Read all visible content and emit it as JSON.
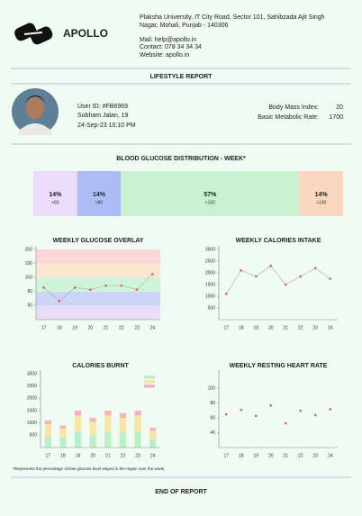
{
  "header": {
    "brand": "APOLLO",
    "address": [
      "Plaksha University, IT City Road, Sector 101, Sahibzada Ajit Singh",
      "Nagar, Mohali, Punjab - 140306"
    ],
    "mail": "Mail: help@apollo.in",
    "contact": "Contact: 078 34 34 34",
    "website": "Website: apollo.in"
  },
  "report_title": "LIFESTYLE REPORT",
  "profile": {
    "user_id": "User ID: #FB6969",
    "name": "Subham Jalan, 19",
    "datetime": "24-Sep-23 10:10 PM",
    "metrics": [
      {
        "label": "Body Mass Index:",
        "value": "20"
      },
      {
        "label": "Basic Metabolic Rate:",
        "value": "1700"
      }
    ]
  },
  "distribution": {
    "title": "BLOOD GLUCOSE DISTRIBUTION - WEEK*",
    "segments": [
      {
        "value": 14,
        "value_label": "14%",
        "range": "<60",
        "color": "#ecdcfb"
      },
      {
        "value": 14,
        "value_label": "14%",
        "range": "<80",
        "color": "#aebcf5"
      },
      {
        "value": 57,
        "value_label": "57%",
        "range": "<150",
        "color": "#c9f2d3"
      },
      {
        "value": 14,
        "value_label": "14%",
        "range": ">190",
        "color": "#fcd7c0"
      }
    ]
  },
  "chart_data": [
    {
      "type": "line",
      "title": "WEEKLY GLUCOSE OVERLAY",
      "categories": [
        "17",
        "18",
        "19",
        "20",
        "21",
        "22",
        "23",
        "24"
      ],
      "series": [
        {
          "color": "#e05a5a",
          "values": [
            100,
            60,
            100,
            90,
            110,
            110,
            90,
            160
          ]
        }
      ],
      "ylim": [
        30,
        350
      ],
      "yticks": [
        50,
        80,
        150,
        190,
        350
      ],
      "band_colors": [
        "#e6d9f7",
        "#c6cef7",
        "#c8f2d4",
        "#fde3c9",
        "#fcd0d0"
      ]
    },
    {
      "type": "line",
      "title": "WEEKLY CALORIES INTAKE",
      "categories": [
        "17",
        "18",
        "19",
        "20",
        "21",
        "22",
        "23",
        "24"
      ],
      "series": [
        {
          "color": "#e05a5a",
          "values": [
            1100,
            2100,
            1850,
            2300,
            1500,
            1850,
            2200,
            1750
          ]
        }
      ],
      "ylim": [
        0,
        3500
      ],
      "yticks": [
        500,
        1000,
        1500,
        2000,
        2500,
        3500
      ]
    },
    {
      "type": "bar",
      "title": "CALORIES BURNT",
      "categories": [
        "17",
        "18",
        "19",
        "20",
        "21",
        "22",
        "23",
        "24"
      ],
      "series": [
        {
          "color": "#b9f0c8",
          "values": [
            450,
            400,
            650,
            500,
            650,
            600,
            650,
            350
          ]
        },
        {
          "color": "#f7e6a6",
          "values": [
            500,
            380,
            650,
            550,
            650,
            600,
            650,
            330
          ]
        },
        {
          "color": "#f5b5b5",
          "values": [
            150,
            120,
            200,
            150,
            200,
            200,
            200,
            120
          ]
        }
      ],
      "ylim": [
        0,
        3500
      ],
      "yticks": [
        500,
        1000,
        1500,
        2000,
        2500,
        3500
      ]
    },
    {
      "type": "scatter",
      "title": "WEEKLY RESTING HEART RATE",
      "categories": [
        "17",
        "18",
        "19",
        "20",
        "21",
        "22",
        "23",
        "24"
      ],
      "series": [
        {
          "color": "#e05a5a",
          "values": [
            65,
            71,
            63,
            77,
            53,
            70,
            64,
            72
          ]
        }
      ],
      "ylim": [
        20,
        120
      ],
      "yticks": [
        40,
        60,
        80,
        100
      ]
    }
  ],
  "footnote": "*Represents the percentage of time glucose level stayed in the region over the week.",
  "footer": "END OF REPORT"
}
